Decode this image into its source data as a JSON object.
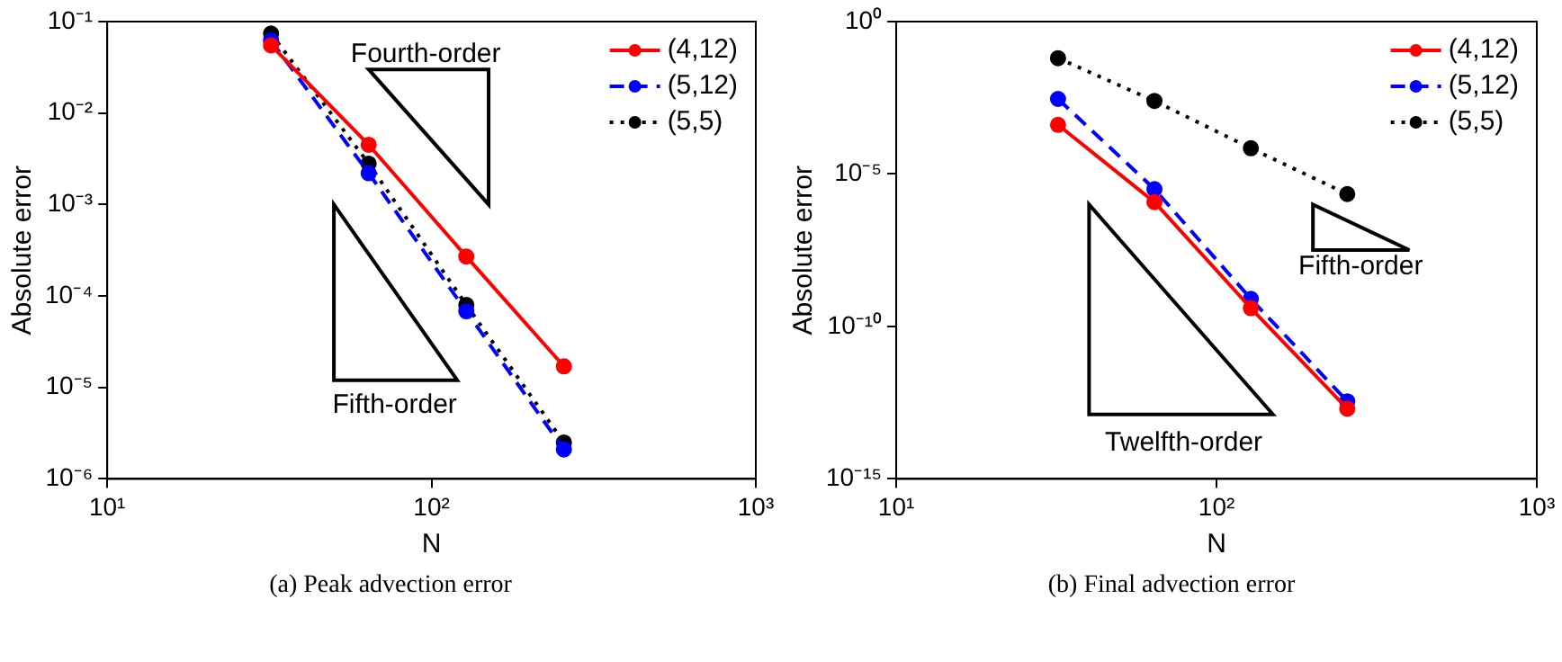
{
  "chart_data": [
    {
      "type": "line",
      "xlabel": "N",
      "ylabel": "Absolute error",
      "log": "xy",
      "grid": false,
      "legend": "top right",
      "marker": "circle",
      "x": [
        32,
        64,
        128,
        256
      ],
      "xlim": [
        10,
        1000
      ],
      "xticks": [
        {
          "value": 10,
          "label": "10¹"
        },
        {
          "value": 100,
          "label": "10²"
        },
        {
          "value": 1000,
          "label": "10³"
        }
      ],
      "ylim": [
        1e-06,
        0.1
      ],
      "yticks": [
        {
          "value": 1e-06,
          "label": "10⁻⁶"
        },
        {
          "value": 1e-05,
          "label": "10⁻⁵"
        },
        {
          "value": 0.0001,
          "label": "10⁻⁴"
        },
        {
          "value": 0.001,
          "label": "10⁻³"
        },
        {
          "value": 0.01,
          "label": "10⁻²"
        },
        {
          "value": 0.1,
          "label": "10⁻¹"
        }
      ],
      "series": [
        {
          "name": "(4,12)",
          "color": "#ff0000",
          "line_style": "solid",
          "values": [
            0.055,
            0.0045,
            0.00027,
            1.7e-05
          ]
        },
        {
          "name": "(5,12)",
          "color": "#0000ff",
          "line_style": "dashed",
          "values": [
            0.062,
            0.0022,
            6.8e-05,
            2.1e-06
          ]
        },
        {
          "name": "(5,5)",
          "color": "#000000",
          "line_style": "dotted",
          "values": [
            0.074,
            0.0028,
            8e-05,
            2.5e-06
          ]
        }
      ],
      "annotations": [
        "Fourth-order",
        "Fifth-order",
        "(a) Peak advection error"
      ]
    },
    {
      "type": "line",
      "xlabel": "N",
      "ylabel": "Absolute error",
      "log": "xy",
      "grid": false,
      "legend": "top right",
      "marker": "circle",
      "x": [
        32,
        64,
        128,
        256
      ],
      "xlim": [
        10,
        1000
      ],
      "xticks": [
        {
          "value": 10,
          "label": "10¹"
        },
        {
          "value": 100,
          "label": "10²"
        },
        {
          "value": 1000,
          "label": "10³"
        }
      ],
      "ylim": [
        1e-15,
        1
      ],
      "yticks": [
        {
          "value": 1e-15,
          "label": "10⁻¹⁵"
        },
        {
          "value": 1e-10,
          "label": "10⁻¹⁰"
        },
        {
          "value": 1e-05,
          "label": "10⁻⁵"
        },
        {
          "value": 1,
          "label": "10⁰"
        }
      ],
      "series": [
        {
          "name": "(4,12)",
          "color": "#ff0000",
          "line_style": "solid",
          "values": [
            0.00041,
            1.2e-06,
            4e-10,
            2e-13
          ]
        },
        {
          "name": "(5,12)",
          "color": "#0000ff",
          "line_style": "dashed",
          "values": [
            0.0029,
            3.2e-06,
            8e-10,
            3.5e-13
          ]
        },
        {
          "name": "(5,5)",
          "color": "#000000",
          "line_style": "dotted",
          "values": [
            0.063,
            0.0025,
            7e-05,
            2.2e-06
          ]
        }
      ],
      "annotations": [
        "Twelfth-order",
        "Fifth-order",
        "(b) Final advection error"
      ]
    }
  ]
}
